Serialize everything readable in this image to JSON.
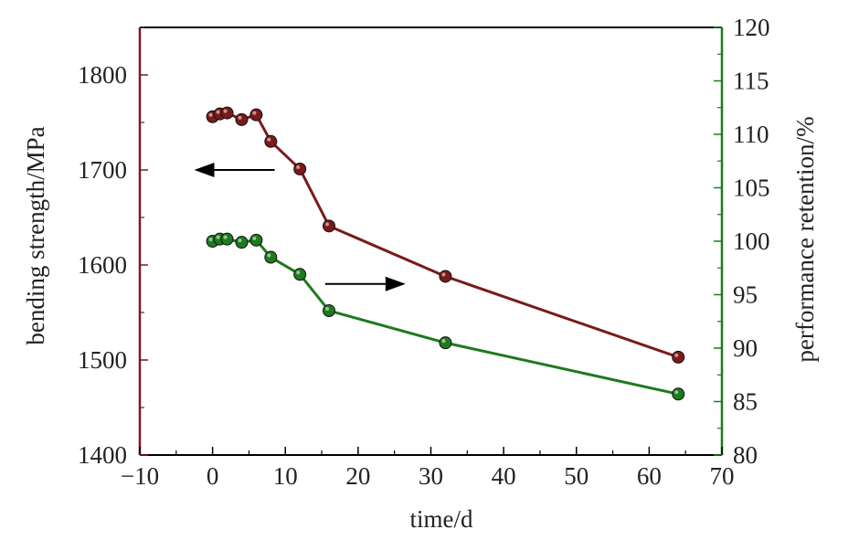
{
  "chart_data": {
    "type": "line",
    "title": "",
    "xlabel": "time/d",
    "ylabel": "bending strength/MPa",
    "y2label": "performance retention/%",
    "xlim": [
      -10,
      70
    ],
    "ylim": [
      1400,
      1850
    ],
    "y2lim": [
      80,
      120
    ],
    "x_ticks": [
      -10,
      0,
      10,
      20,
      30,
      40,
      50,
      60,
      70
    ],
    "x_tick_labels": [
      "−10",
      "0",
      "10",
      "20",
      "30",
      "40",
      "50",
      "60",
      "70"
    ],
    "y_ticks": [
      1400,
      1500,
      1600,
      1700,
      1800
    ],
    "y2_ticks": [
      80,
      85,
      90,
      95,
      100,
      105,
      110,
      115,
      120
    ],
    "grid": false,
    "colors": {
      "strength": "#7a1a1a",
      "retention": "#1e7a1e",
      "left_axis": "#7a1a1a",
      "right_axis": "#1e7a1e",
      "arrow": "#000000"
    },
    "series": [
      {
        "axis": "left",
        "x": [
          0,
          1,
          2,
          4,
          6,
          8,
          12,
          16,
          32,
          64
        ],
        "values": [
          1756,
          1759,
          1760,
          1753,
          1758,
          1730,
          1701,
          1641,
          1588,
          1503
        ]
      },
      {
        "axis": "right",
        "x": [
          0,
          1,
          2,
          4,
          6,
          8,
          12,
          16,
          32,
          64
        ],
        "values": [
          100.0,
          100.2,
          100.2,
          99.9,
          100.1,
          98.5,
          96.9,
          93.5,
          90.5,
          85.7
        ]
      }
    ],
    "annotations": [
      {
        "type": "arrow",
        "direction": "left",
        "points_to": "left-axis",
        "near": {
          "x": 3,
          "y": 1700
        }
      },
      {
        "type": "arrow",
        "direction": "right",
        "points_to": "right-axis",
        "near": {
          "x": 21,
          "y": 1580
        }
      }
    ]
  }
}
